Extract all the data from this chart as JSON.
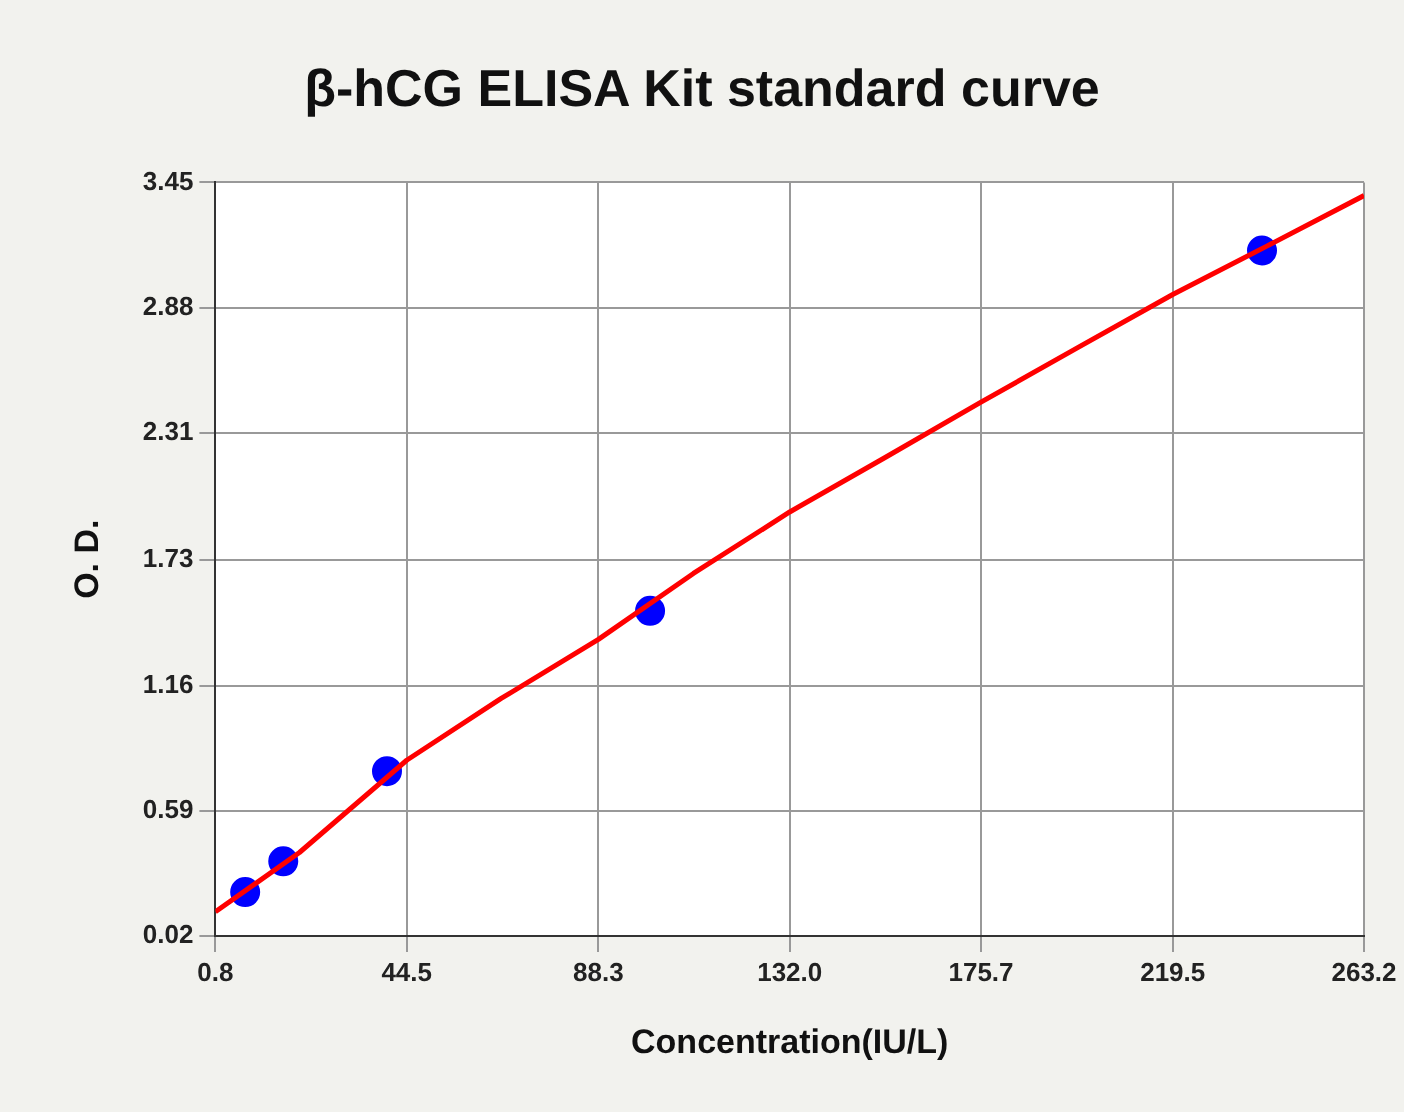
{
  "chart_data": {
    "type": "scatter",
    "title": "β-hCG ELISA Kit standard curve",
    "xlabel": "Concentration(IU/L)",
    "ylabel": "O. D.",
    "xlim": [
      0.8,
      263.2
    ],
    "xticks": [
      0.8,
      44.5,
      88.3,
      {
        "value": 132,
        "label": "132.0"
      },
      175.7,
      219.5,
      263.2
    ],
    "ylim": [
      0.02,
      3.45
    ],
    "yticks": [
      0.02,
      0.59,
      1.16,
      1.73,
      2.31,
      2.88,
      3.45
    ],
    "grid": true,
    "series": [
      {
        "type": "line",
        "color": "#ff0000",
        "marker": "none",
        "x": [
          0.8,
          20,
          44.5,
          66,
          88.3,
          110,
          132,
          154,
          175.7,
          198,
          219.5,
          241,
          263.2
        ],
        "values": [
          0.13,
          0.4,
          0.82,
          1.1,
          1.37,
          1.67,
          1.95,
          2.2,
          2.45,
          2.7,
          2.94,
          3.16,
          3.39
        ]
      },
      {
        "color": "#0000ff",
        "marker": "circle",
        "x": [
          7.6,
          16.3,
          40,
          100.1,
          239.9
        ],
        "values": [
          0.22,
          0.36,
          0.77,
          1.5,
          3.14
        ]
      }
    ]
  }
}
